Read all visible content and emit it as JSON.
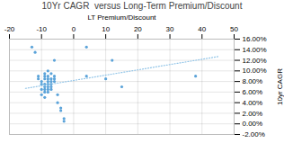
{
  "chart_data": {
    "type": "scatter",
    "title": "10Yr CAGR  versus Long-Term Premium/Discount",
    "xlabel": "LT Premium/Discount",
    "ylabel": "10yr CAGR",
    "xlim": [
      -20,
      50
    ],
    "ylim": [
      -0.02,
      0.16
    ],
    "xticks": [
      -20,
      -10,
      0,
      10,
      20,
      30,
      40,
      50
    ],
    "yticks": [
      {
        "value": -0.02,
        "label": "-2.00%"
      },
      {
        "value": 0.0,
        "label": "0.00%"
      },
      {
        "value": 0.02,
        "label": "2.00%"
      },
      {
        "value": 0.04,
        "label": "4.00%"
      },
      {
        "value": 0.06,
        "label": "6.00%"
      },
      {
        "value": 0.08,
        "label": "8.00%"
      },
      {
        "value": 0.1,
        "label": "10.00%"
      },
      {
        "value": 0.12,
        "label": "12.00%"
      },
      {
        "value": 0.14,
        "label": "14.00%"
      },
      {
        "value": 0.16,
        "label": "16.00%"
      }
    ],
    "grid": true,
    "series": [
      {
        "type": "scatter",
        "marker": "circle",
        "color": "#5BA3D9",
        "x": [
          -13,
          -12,
          -11,
          -11,
          -10,
          -10,
          -10,
          -10,
          -9,
          -9,
          -9,
          -9,
          -9,
          -9,
          -9,
          -9,
          -8,
          -8,
          -8,
          -8,
          -8,
          -8,
          -8,
          -8,
          -7,
          -7,
          -7,
          -7,
          -7,
          -7,
          -6,
          -6,
          -6,
          -6,
          -5,
          -5,
          -4,
          -4,
          -3,
          -3,
          4,
          4,
          10,
          12,
          15,
          38
        ],
        "values": [
          0.145,
          0.135,
          0.09,
          0.085,
          0.08,
          0.075,
          0.065,
          0.055,
          0.095,
          0.09,
          0.085,
          0.075,
          0.07,
          0.065,
          0.06,
          0.05,
          0.1,
          0.09,
          0.085,
          0.08,
          0.075,
          0.07,
          0.065,
          0.06,
          0.095,
          0.085,
          0.08,
          0.075,
          0.07,
          0.065,
          0.12,
          0.09,
          0.085,
          0.08,
          0.055,
          0.04,
          0.03,
          0.025,
          0.01,
          0.005,
          0.145,
          0.09,
          0.085,
          0.12,
          0.07,
          0.09
        ]
      },
      {
        "type": "line",
        "line_style": "dotted",
        "color": "#92C5E8",
        "x": [
          -15,
          45
        ],
        "values": [
          0.067,
          0.127
        ]
      }
    ]
  }
}
